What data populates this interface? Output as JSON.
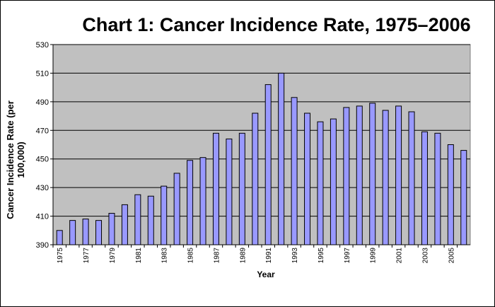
{
  "chart_data": {
    "type": "bar",
    "title": "Chart 1: Cancer Incidence Rate, 1975–2006",
    "xlabel": "Year",
    "ylabel": "Cancer Incidence Rate (per 100,000)",
    "ylim": [
      390,
      530
    ],
    "yticks": [
      390,
      410,
      430,
      450,
      470,
      490,
      510,
      530
    ],
    "grid": true,
    "bar_color": "#9999ff",
    "plot_background": "#c0c0c0",
    "categories": [
      "1975",
      "1976",
      "1977",
      "1978",
      "1979",
      "1980",
      "1981",
      "1982",
      "1983",
      "1984",
      "1985",
      "1986",
      "1987",
      "1988",
      "1989",
      "1990",
      "1991",
      "1992",
      "1993",
      "1994",
      "1995",
      "1996",
      "1997",
      "1998",
      "1999",
      "2000",
      "2001",
      "2002",
      "2003",
      "2004",
      "2005",
      "2006"
    ],
    "x_tick_labels": [
      "1975",
      "1977",
      "1979",
      "1981",
      "1983",
      "1985",
      "1987",
      "1989",
      "1991",
      "1993",
      "1995",
      "1997",
      "1999",
      "2001",
      "2003",
      "2005"
    ],
    "values": [
      400,
      407,
      408,
      407,
      412,
      418,
      425,
      424,
      431,
      440,
      449,
      451,
      468,
      464,
      468,
      482,
      502,
      510,
      493,
      482,
      476,
      478,
      486,
      487,
      489,
      484,
      487,
      483,
      469,
      468,
      460,
      456
    ]
  }
}
